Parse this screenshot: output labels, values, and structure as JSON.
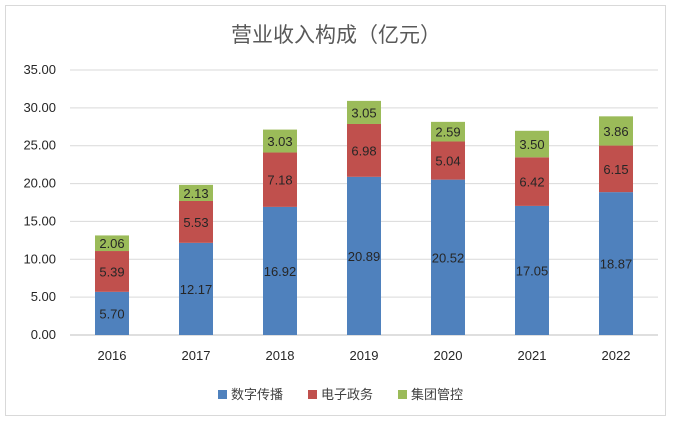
{
  "chart_data": {
    "type": "bar",
    "stacked": true,
    "title": "营业收入构成（亿元）",
    "categories": [
      "2016",
      "2017",
      "2018",
      "2019",
      "2020",
      "2021",
      "2022"
    ],
    "series": [
      {
        "name": "数字传播",
        "color": "#4f81bd",
        "values": [
          5.7,
          12.17,
          16.92,
          20.89,
          20.52,
          17.05,
          18.87
        ]
      },
      {
        "name": "电子政务",
        "color": "#c0504d",
        "values": [
          5.39,
          5.53,
          7.18,
          6.98,
          5.04,
          6.42,
          6.15
        ]
      },
      {
        "name": "集团管控",
        "color": "#9bbb59",
        "values": [
          2.06,
          2.13,
          3.03,
          3.05,
          2.59,
          3.5,
          3.86
        ]
      }
    ],
    "ylim": [
      0,
      35
    ],
    "yticks": [
      "0.00",
      "5.00",
      "10.00",
      "15.00",
      "20.00",
      "25.00",
      "30.00",
      "35.00"
    ],
    "grid": true,
    "legend_position": "bottom"
  }
}
